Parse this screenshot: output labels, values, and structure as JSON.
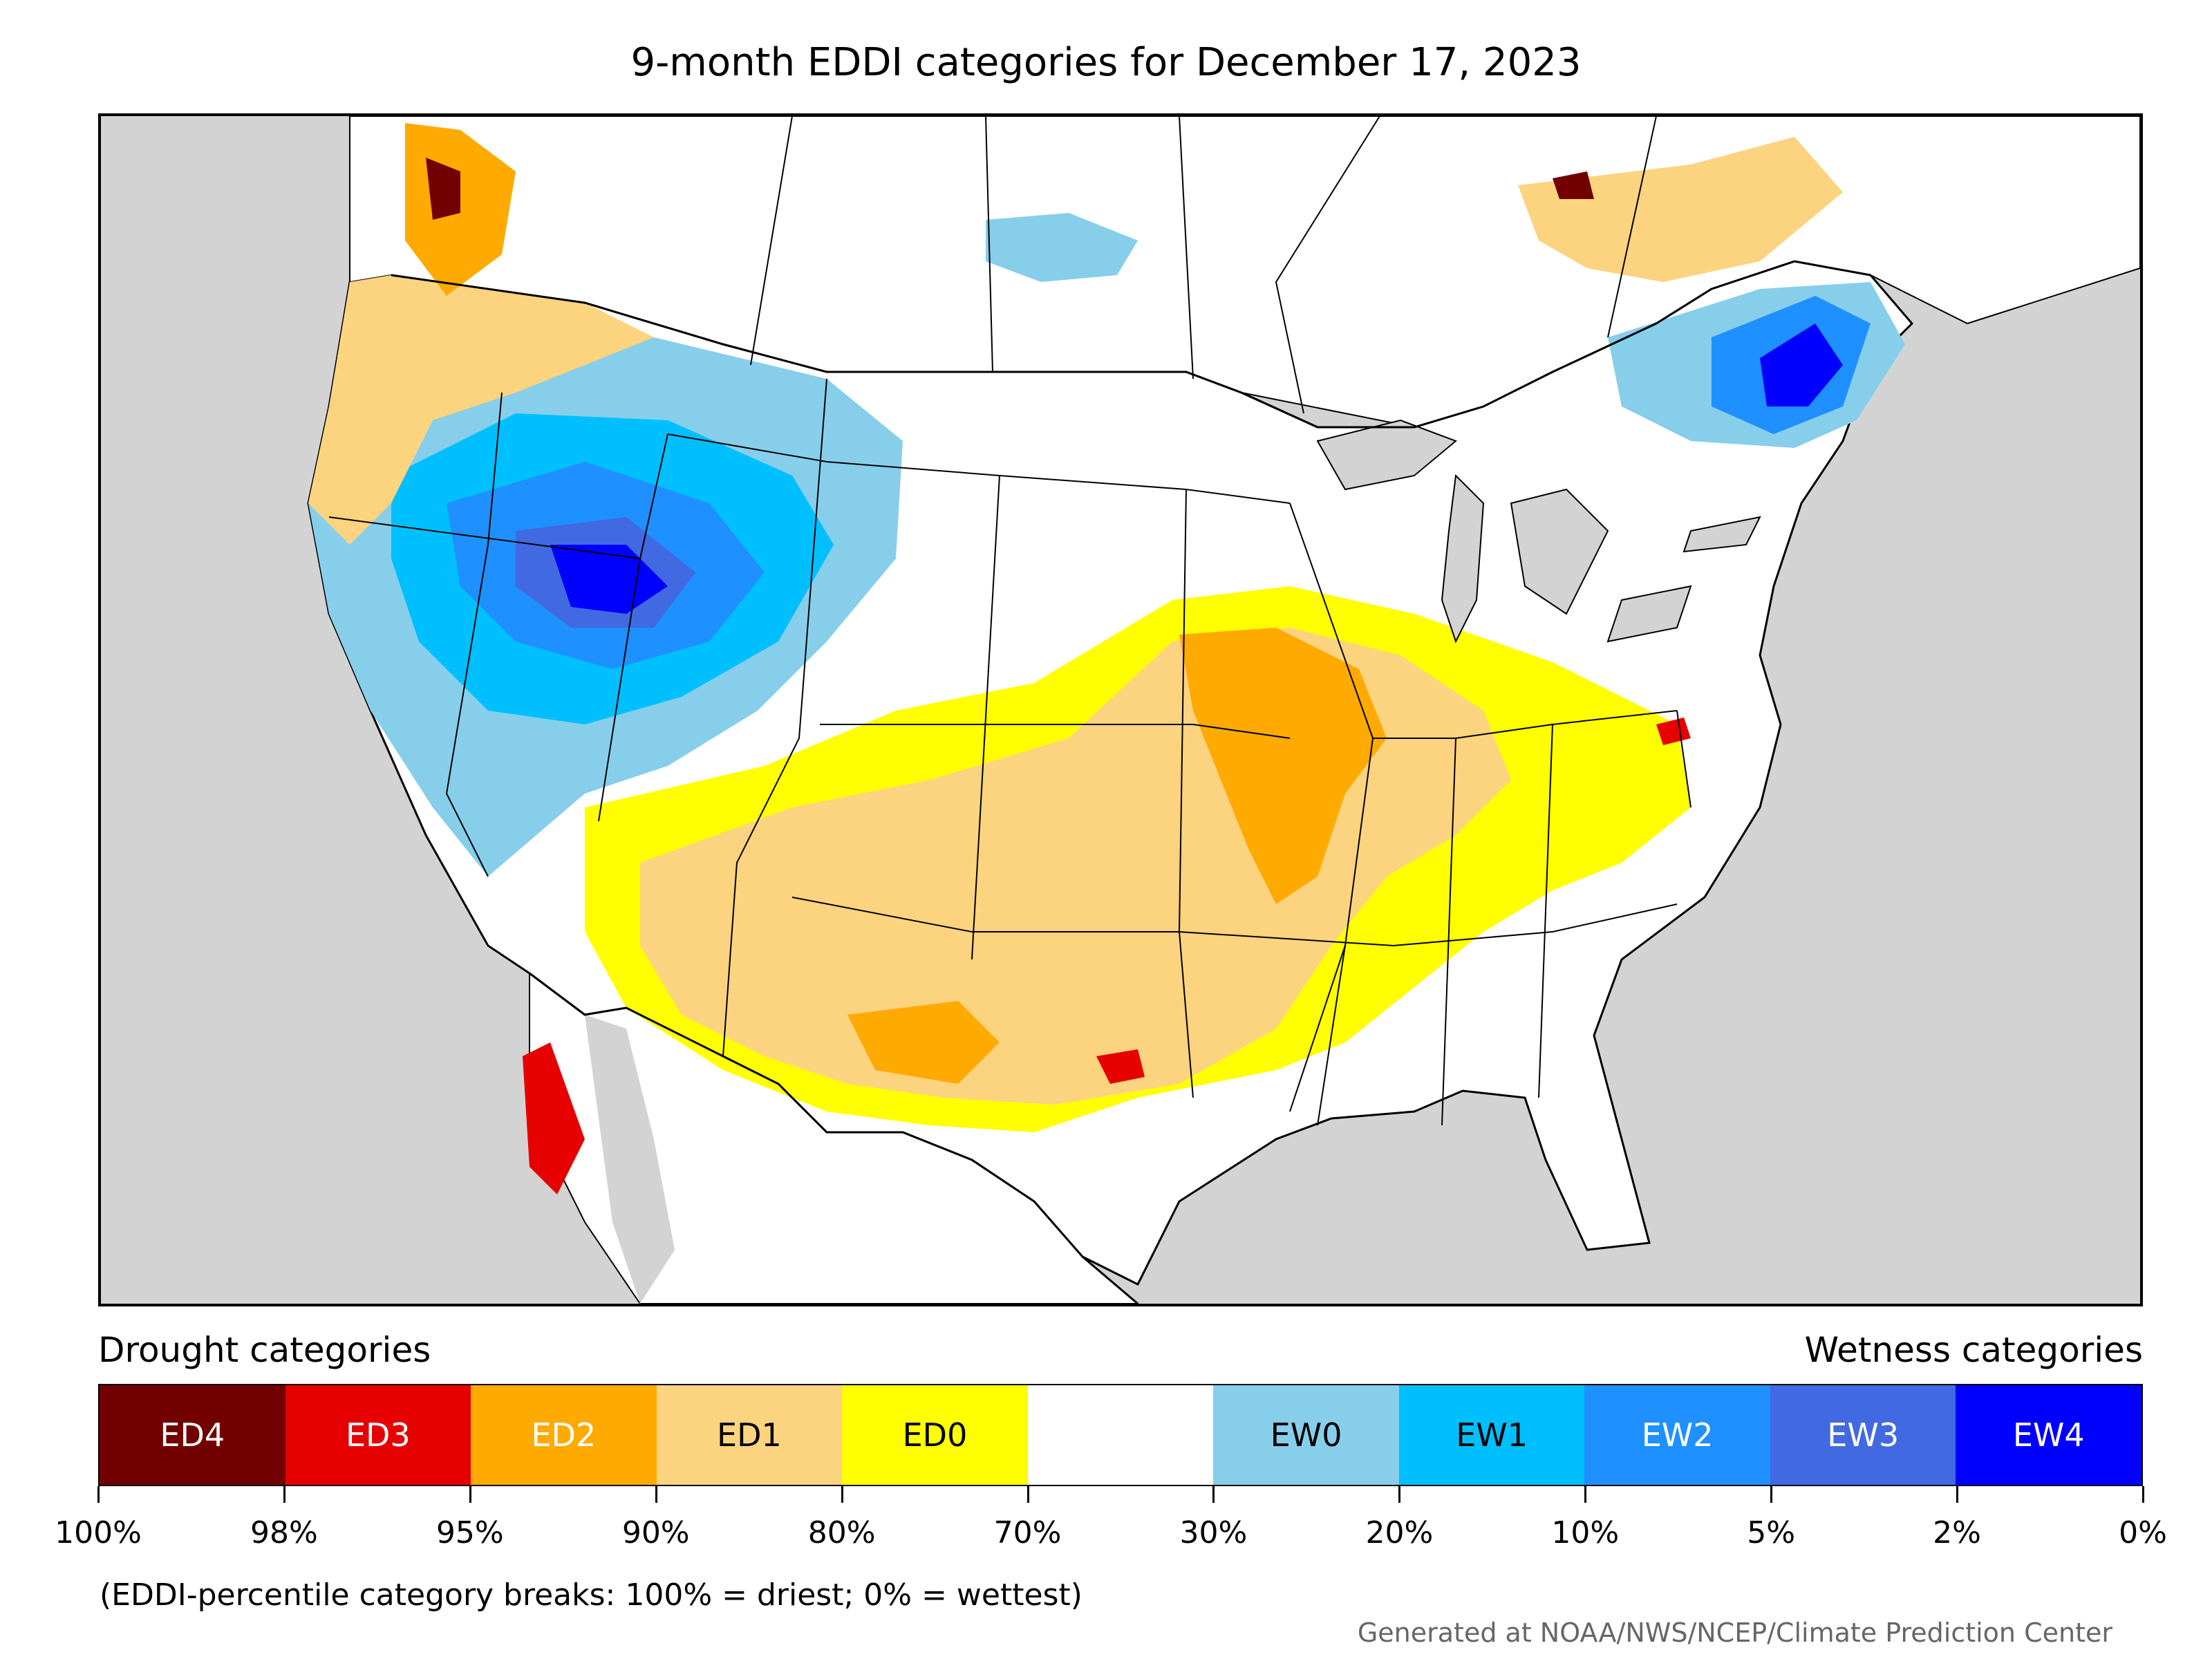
{
  "title": "9-month EDDI categories for December 17, 2023",
  "map": {
    "region": "Contiguous United States, southern Canada, northern Mexico",
    "land_outside_data_color": "#d3d3d3",
    "border_color": "#000000",
    "dominant_patterns": [
      {
        "area": "Pacific Northwest / Northern Rockies / Great Basin / Wyoming",
        "category": "EW1-EW4"
      },
      {
        "area": "Northern Maine / Quebec",
        "category": "EW1-EW4"
      },
      {
        "area": "Southwest / Texas / Lower Mississippi Valley",
        "category": "ED1-ED2"
      },
      {
        "area": "Midwest (Iowa, Missouri, Illinois)",
        "category": "ED1-ED2"
      },
      {
        "area": "Baja California / central Texas pockets",
        "category": "ED3-ED4"
      }
    ]
  },
  "legend": {
    "drought_heading": "Drought categories",
    "wetness_heading": "Wetness categories",
    "categories": [
      {
        "label": "ED4",
        "color": "#730000",
        "text_color": "#ffffff"
      },
      {
        "label": "ED3",
        "color": "#e60000",
        "text_color": "#ffffff"
      },
      {
        "label": "ED2",
        "color": "#ffaa00",
        "text_color": "#ffffff"
      },
      {
        "label": "ED1",
        "color": "#fcd37f",
        "text_color": "#000000"
      },
      {
        "label": "ED0",
        "color": "#ffff00",
        "text_color": "#000000"
      },
      {
        "label": "",
        "color": "#ffffff",
        "text_color": "#000000"
      },
      {
        "label": "EW0",
        "color": "#87ceeb",
        "text_color": "#000000"
      },
      {
        "label": "EW1",
        "color": "#00bfff",
        "text_color": "#000000"
      },
      {
        "label": "EW2",
        "color": "#1e90ff",
        "text_color": "#ffffff"
      },
      {
        "label": "EW3",
        "color": "#4169e1",
        "text_color": "#ffffff"
      },
      {
        "label": "EW4",
        "color": "#0000ff",
        "text_color": "#ffffff"
      }
    ],
    "tick_labels": [
      "100%",
      "98%",
      "95%",
      "90%",
      "80%",
      "70%",
      "30%",
      "20%",
      "10%",
      "5%",
      "2%",
      "0%"
    ]
  },
  "note": "(EDDI-percentile category breaks: 100% = driest; 0% = wettest)",
  "credit": "Generated at NOAA/NWS/NCEP/Climate Prediction Center"
}
